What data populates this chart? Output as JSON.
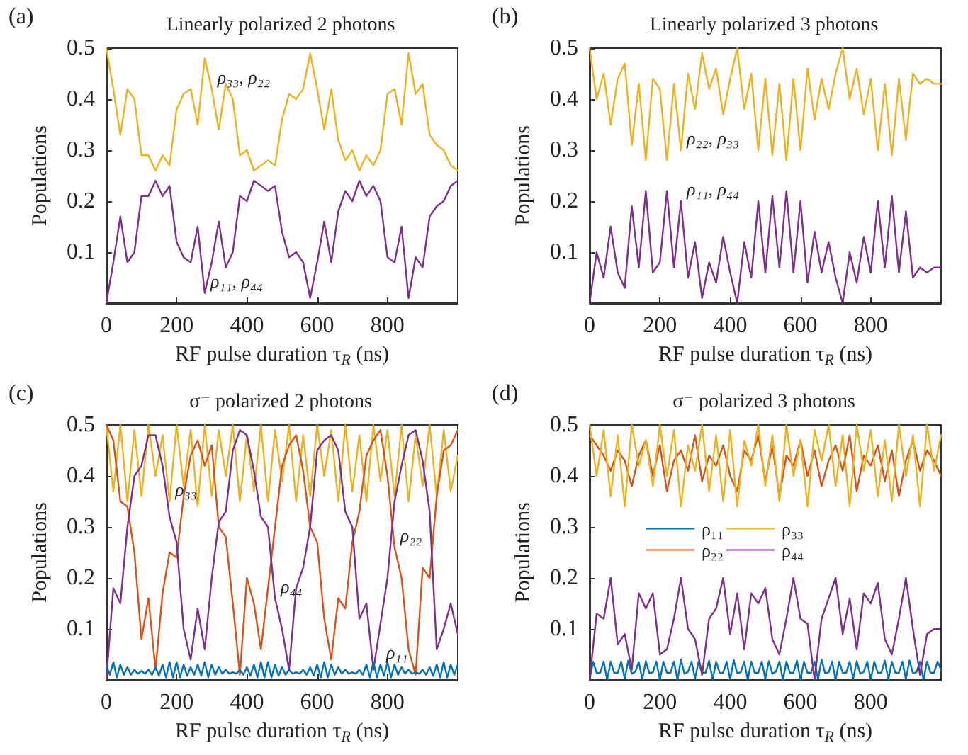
{
  "chart_data": [
    {
      "type": "line",
      "title": "Linearly polarized 2 photons",
      "xlabel": "RF pulse duration τ$_{R}$ (ns)",
      "ylabel": "Populations",
      "annotations": [
        "(a)",
        {
          "text": "ρ₃₃, ρ₂₂",
          "x": 300,
          "y": 0.42
        },
        {
          "text": "ρ₁₁, ρ₄₄",
          "x": 280,
          "y": 0.02
        }
      ],
      "xlim": [
        0,
        1000
      ],
      "ylim": [
        0,
        0.5
      ],
      "xticks": [
        0,
        200,
        400,
        600,
        800
      ],
      "yticks": [
        0.1,
        0.2,
        0.3,
        0.4,
        0.5
      ],
      "x": [
        0,
        20,
        40,
        60,
        80,
        100,
        120,
        140,
        160,
        180,
        200,
        220,
        240,
        260,
        280,
        300,
        320,
        340,
        360,
        380,
        400,
        420,
        440,
        460,
        480,
        500,
        520,
        540,
        560,
        580,
        600,
        620,
        640,
        660,
        680,
        700,
        720,
        740,
        760,
        780,
        800,
        820,
        840,
        860,
        880,
        900,
        920,
        940,
        960,
        980,
        1000
      ],
      "series": [
        {
          "color": "#edb120",
          "values": [
            0.5,
            0.42,
            0.33,
            0.42,
            0.4,
            0.29,
            0.29,
            0.26,
            0.29,
            0.27,
            0.38,
            0.41,
            0.42,
            0.35,
            0.48,
            0.42,
            0.34,
            0.43,
            0.4,
            0.29,
            0.3,
            0.26,
            0.27,
            0.28,
            0.27,
            0.36,
            0.41,
            0.4,
            0.42,
            0.49,
            0.42,
            0.34,
            0.42,
            0.32,
            0.28,
            0.3,
            0.26,
            0.29,
            0.27,
            0.3,
            0.41,
            0.42,
            0.35,
            0.49,
            0.41,
            0.43,
            0.33,
            0.31,
            0.3,
            0.27,
            0.26
          ]
        },
        {
          "color": "#7e2f8e",
          "values": [
            0.0,
            0.08,
            0.17,
            0.08,
            0.1,
            0.21,
            0.21,
            0.24,
            0.21,
            0.23,
            0.12,
            0.09,
            0.08,
            0.15,
            0.02,
            0.08,
            0.16,
            0.07,
            0.1,
            0.21,
            0.2,
            0.24,
            0.23,
            0.22,
            0.23,
            0.14,
            0.09,
            0.1,
            0.08,
            0.01,
            0.08,
            0.16,
            0.08,
            0.18,
            0.22,
            0.2,
            0.24,
            0.21,
            0.23,
            0.2,
            0.09,
            0.08,
            0.15,
            0.01,
            0.09,
            0.07,
            0.17,
            0.19,
            0.2,
            0.23,
            0.24
          ]
        }
      ]
    },
    {
      "type": "line",
      "title": "Linearly polarized 3 photons",
      "xlabel": "RF pulse duration τ$_{R}$ (ns)",
      "ylabel": "Populations",
      "annotations": [
        "(b)",
        {
          "text": "ρ₂₂, ρ₃₃",
          "x": 260,
          "y": 0.3
        },
        {
          "text": "ρ₁₁, ρ₄₄",
          "x": 260,
          "y": 0.2
        }
      ],
      "xlim": [
        0,
        1000
      ],
      "ylim": [
        0,
        0.5
      ],
      "xticks": [
        0,
        200,
        400,
        600,
        800
      ],
      "yticks": [
        0.1,
        0.2,
        0.3,
        0.4,
        0.5
      ],
      "x": [
        0,
        20,
        40,
        60,
        80,
        100,
        120,
        140,
        160,
        180,
        200,
        220,
        240,
        260,
        280,
        300,
        320,
        340,
        360,
        380,
        400,
        420,
        440,
        460,
        480,
        500,
        520,
        540,
        560,
        580,
        600,
        620,
        640,
        660,
        680,
        700,
        720,
        740,
        760,
        780,
        800,
        820,
        840,
        860,
        880,
        900,
        920,
        940,
        960,
        980,
        1000
      ],
      "series": [
        {
          "color": "#edb120",
          "values": [
            0.5,
            0.4,
            0.45,
            0.35,
            0.44,
            0.47,
            0.31,
            0.43,
            0.28,
            0.44,
            0.42,
            0.28,
            0.43,
            0.3,
            0.45,
            0.38,
            0.49,
            0.42,
            0.46,
            0.37,
            0.44,
            0.5,
            0.38,
            0.45,
            0.3,
            0.44,
            0.29,
            0.43,
            0.28,
            0.44,
            0.3,
            0.46,
            0.36,
            0.44,
            0.38,
            0.45,
            0.5,
            0.4,
            0.46,
            0.37,
            0.44,
            0.3,
            0.43,
            0.29,
            0.44,
            0.32,
            0.45,
            0.43,
            0.44,
            0.43,
            0.43
          ]
        },
        {
          "color": "#7e2f8e",
          "values": [
            0.0,
            0.1,
            0.05,
            0.15,
            0.06,
            0.03,
            0.19,
            0.07,
            0.22,
            0.06,
            0.08,
            0.22,
            0.07,
            0.2,
            0.05,
            0.12,
            0.01,
            0.08,
            0.04,
            0.13,
            0.06,
            0.0,
            0.12,
            0.05,
            0.2,
            0.06,
            0.21,
            0.07,
            0.22,
            0.06,
            0.2,
            0.04,
            0.14,
            0.06,
            0.12,
            0.05,
            0.0,
            0.1,
            0.04,
            0.13,
            0.06,
            0.2,
            0.07,
            0.21,
            0.06,
            0.18,
            0.05,
            0.07,
            0.06,
            0.07,
            0.07
          ]
        }
      ]
    },
    {
      "type": "line",
      "title": "σ⁻ polarized 2 photons",
      "xlabel": "RF pulse duration τ$_{R}$ (ns)",
      "ylabel": "Populations",
      "annotations": [
        "(c)",
        {
          "text": "ρ₃₃",
          "x": 180,
          "y": 0.35
        },
        {
          "text": "ρ₄₄",
          "x": 480,
          "y": 0.16
        },
        {
          "text": "ρ₂₂",
          "x": 820,
          "y": 0.26
        },
        {
          "text": "ρ₁₁",
          "x": 780,
          "y": 0.03
        }
      ],
      "xlim": [
        0,
        1000
      ],
      "ylim": [
        0,
        0.5
      ],
      "xticks": [
        0,
        200,
        400,
        600,
        800
      ],
      "yticks": [
        0.1,
        0.2,
        0.3,
        0.4,
        0.5
      ],
      "x": [
        0,
        20,
        40,
        60,
        80,
        100,
        120,
        140,
        160,
        180,
        200,
        220,
        240,
        260,
        280,
        300,
        320,
        340,
        360,
        380,
        400,
        420,
        440,
        460,
        480,
        500,
        520,
        540,
        560,
        580,
        600,
        620,
        640,
        660,
        680,
        700,
        720,
        740,
        760,
        780,
        800,
        820,
        840,
        860,
        880,
        900,
        920,
        940,
        960,
        980,
        1000
      ],
      "series": [
        {
          "color": "#edb120",
          "values": [
            0.5,
            0.37,
            0.5,
            0.35,
            0.49,
            0.36,
            0.5,
            0.4,
            0.48,
            0.35,
            0.5,
            0.38,
            0.49,
            0.34,
            0.5,
            0.36,
            0.49,
            0.4,
            0.5,
            0.35,
            0.48,
            0.37,
            0.5,
            0.35,
            0.49,
            0.39,
            0.5,
            0.35,
            0.48,
            0.36,
            0.5,
            0.4,
            0.49,
            0.35,
            0.5,
            0.37,
            0.48,
            0.35,
            0.5,
            0.39,
            0.49,
            0.36,
            0.5,
            0.35,
            0.48,
            0.38,
            0.5,
            0.36,
            0.49,
            0.37,
            0.44
          ]
        },
        {
          "color": "#d95319",
          "values": [
            0.5,
            0.47,
            0.35,
            0.34,
            0.25,
            0.08,
            0.16,
            0.02,
            0.17,
            0.25,
            0.24,
            0.36,
            0.44,
            0.47,
            0.42,
            0.46,
            0.3,
            0.28,
            0.15,
            0.01,
            0.2,
            0.15,
            0.06,
            0.18,
            0.3,
            0.42,
            0.46,
            0.48,
            0.41,
            0.3,
            0.27,
            0.12,
            0.04,
            0.16,
            0.14,
            0.27,
            0.33,
            0.44,
            0.47,
            0.49,
            0.4,
            0.26,
            0.2,
            0.06,
            0.01,
            0.22,
            0.2,
            0.36,
            0.45,
            0.46,
            0.49
          ]
        },
        {
          "color": "#7e2f8e",
          "values": [
            0.0,
            0.18,
            0.15,
            0.3,
            0.4,
            0.42,
            0.48,
            0.48,
            0.42,
            0.32,
            0.27,
            0.1,
            0.04,
            0.14,
            0.06,
            0.2,
            0.31,
            0.33,
            0.45,
            0.49,
            0.48,
            0.41,
            0.32,
            0.3,
            0.16,
            0.1,
            0.02,
            0.18,
            0.22,
            0.3,
            0.45,
            0.47,
            0.48,
            0.45,
            0.33,
            0.3,
            0.12,
            0.15,
            0.02,
            0.11,
            0.2,
            0.35,
            0.42,
            0.48,
            0.49,
            0.43,
            0.33,
            0.06,
            0.1,
            0.15,
            0.09
          ]
        },
        {
          "color": "#0072bd",
          "x": [
            0,
            10,
            20,
            30,
            40,
            50,
            60,
            70,
            80,
            90,
            100,
            110,
            120,
            130,
            140,
            150,
            160,
            170,
            180,
            190,
            200,
            210,
            220,
            230,
            240,
            250,
            260,
            270,
            280,
            290,
            300,
            310,
            320,
            330,
            340,
            350,
            360,
            370,
            380,
            390,
            400,
            410,
            420,
            430,
            440,
            450,
            460,
            470,
            480,
            490,
            500,
            510,
            520,
            530,
            540,
            550,
            560,
            570,
            580,
            590,
            600,
            610,
            620,
            630,
            640,
            650,
            660,
            670,
            680,
            690,
            700,
            710,
            720,
            730,
            740,
            750,
            760,
            770,
            780,
            790,
            800,
            810,
            820,
            830,
            840,
            850,
            860,
            870,
            880,
            890,
            900,
            910,
            920,
            930,
            940,
            950,
            960,
            970,
            980,
            990,
            1000
          ],
          "values": [
            0.03,
            0.01,
            0.035,
            0.005,
            0.03,
            0.01,
            0.025,
            0.01,
            0.02,
            0.012,
            0.018,
            0.012,
            0.02,
            0.01,
            0.025,
            0.008,
            0.03,
            0.005,
            0.035,
            0.005,
            0.035,
            0.005,
            0.03,
            0.008,
            0.025,
            0.01,
            0.03,
            0.008,
            0.035,
            0.005,
            0.03,
            0.01,
            0.025,
            0.012,
            0.02,
            0.012,
            0.015,
            0.012,
            0.02,
            0.01,
            0.025,
            0.008,
            0.03,
            0.005,
            0.035,
            0.005,
            0.035,
            0.005,
            0.03,
            0.008,
            0.025,
            0.01,
            0.02,
            0.012,
            0.015,
            0.012,
            0.02,
            0.01,
            0.025,
            0.008,
            0.03,
            0.005,
            0.035,
            0.005,
            0.03,
            0.01,
            0.025,
            0.012,
            0.02,
            0.012,
            0.015,
            0.012,
            0.02,
            0.01,
            0.03,
            0.005,
            0.035,
            0.005,
            0.03,
            0.008,
            0.035,
            0.005,
            0.03,
            0.01,
            0.025,
            0.012,
            0.02,
            0.012,
            0.015,
            0.012,
            0.02,
            0.01,
            0.025,
            0.008,
            0.03,
            0.005,
            0.035,
            0.005,
            0.03,
            0.01,
            0.03
          ]
        }
      ]
    },
    {
      "type": "line",
      "title": "σ⁻ polarized 3 photons",
      "xlabel": "RF pulse duration τ$_{R}$ (ns)",
      "ylabel": "Populations",
      "annotations": [
        "(d)"
      ],
      "legend": "center",
      "xlim": [
        0,
        1000
      ],
      "ylim": [
        0,
        0.5
      ],
      "xticks": [
        0,
        200,
        400,
        600,
        800
      ],
      "yticks": [
        0.1,
        0.2,
        0.3,
        0.4,
        0.5
      ],
      "x": [
        0,
        20,
        40,
        60,
        80,
        100,
        120,
        140,
        160,
        180,
        200,
        220,
        240,
        260,
        280,
        300,
        320,
        340,
        360,
        380,
        400,
        420,
        440,
        460,
        480,
        500,
        520,
        540,
        560,
        580,
        600,
        620,
        640,
        660,
        680,
        700,
        720,
        740,
        760,
        780,
        800,
        820,
        840,
        860,
        880,
        900,
        920,
        940,
        960,
        980,
        1000
      ],
      "series": [
        {
          "name": "ρ₁₁",
          "color": "#0072bd",
          "x": [
            0,
            10,
            20,
            30,
            40,
            50,
            60,
            70,
            80,
            90,
            100,
            110,
            120,
            130,
            140,
            150,
            160,
            170,
            180,
            190,
            200,
            210,
            220,
            230,
            240,
            250,
            260,
            270,
            280,
            290,
            300,
            310,
            320,
            330,
            340,
            350,
            360,
            370,
            380,
            390,
            400,
            410,
            420,
            430,
            440,
            450,
            460,
            470,
            480,
            490,
            500,
            510,
            520,
            530,
            540,
            550,
            560,
            570,
            580,
            590,
            600,
            610,
            620,
            630,
            640,
            650,
            660,
            670,
            680,
            690,
            700,
            710,
            720,
            730,
            740,
            750,
            760,
            770,
            780,
            790,
            800,
            810,
            820,
            830,
            840,
            850,
            860,
            870,
            880,
            890,
            900,
            910,
            920,
            930,
            940,
            950,
            960,
            970,
            980,
            990,
            1000
          ],
          "values": [
            0.0,
            0.036,
            0.014,
            0.014,
            0.036,
            0.0,
            0.036,
            0.014,
            0.014,
            0.036,
            0.002,
            0.038,
            0.012,
            0.016,
            0.035,
            0.001,
            0.037,
            0.013,
            0.015,
            0.036,
            0.0,
            0.036,
            0.014,
            0.014,
            0.036,
            0.0,
            0.04,
            0.012,
            0.016,
            0.036,
            0.002,
            0.036,
            0.014,
            0.014,
            0.038,
            0.0,
            0.036,
            0.014,
            0.014,
            0.036,
            0.001,
            0.039,
            0.013,
            0.015,
            0.036,
            0.0,
            0.036,
            0.014,
            0.014,
            0.036,
            0.002,
            0.037,
            0.012,
            0.016,
            0.036,
            0.0,
            0.036,
            0.014,
            0.014,
            0.038,
            0.0,
            0.036,
            0.014,
            0.014,
            0.036,
            0.001,
            0.04,
            0.013,
            0.015,
            0.036,
            0.0,
            0.036,
            0.014,
            0.014,
            0.036,
            0.002,
            0.037,
            0.012,
            0.016,
            0.036,
            0.0,
            0.036,
            0.014,
            0.014,
            0.038,
            0.0,
            0.036,
            0.014,
            0.014,
            0.036,
            0.001,
            0.038,
            0.013,
            0.015,
            0.036,
            0.0,
            0.036,
            0.014,
            0.014,
            0.036,
            0.02
          ]
        },
        {
          "name": "ρ₂₂",
          "color": "#d95319",
          "values": [
            0.48,
            0.46,
            0.44,
            0.41,
            0.45,
            0.43,
            0.38,
            0.44,
            0.47,
            0.4,
            0.46,
            0.37,
            0.43,
            0.45,
            0.41,
            0.48,
            0.39,
            0.44,
            0.42,
            0.46,
            0.4,
            0.37,
            0.45,
            0.43,
            0.48,
            0.39,
            0.46,
            0.36,
            0.44,
            0.42,
            0.47,
            0.4,
            0.45,
            0.38,
            0.43,
            0.46,
            0.41,
            0.48,
            0.37,
            0.44,
            0.42,
            0.46,
            0.39,
            0.45,
            0.36,
            0.43,
            0.47,
            0.41,
            0.45,
            0.43,
            0.4
          ]
        },
        {
          "name": "ρ₃₃",
          "color": "#edb120",
          "values": [
            0.5,
            0.4,
            0.49,
            0.36,
            0.48,
            0.34,
            0.5,
            0.42,
            0.47,
            0.38,
            0.5,
            0.4,
            0.49,
            0.34,
            0.46,
            0.41,
            0.5,
            0.37,
            0.48,
            0.35,
            0.49,
            0.34,
            0.47,
            0.42,
            0.5,
            0.38,
            0.48,
            0.35,
            0.5,
            0.4,
            0.47,
            0.34,
            0.49,
            0.43,
            0.5,
            0.38,
            0.48,
            0.34,
            0.5,
            0.41,
            0.49,
            0.36,
            0.47,
            0.35,
            0.5,
            0.4,
            0.48,
            0.34,
            0.5,
            0.41,
            0.48
          ]
        },
        {
          "name": "ρ₄₄",
          "color": "#7e2f8e",
          "values": [
            0.0,
            0.13,
            0.12,
            0.2,
            0.07,
            0.09,
            0.02,
            0.17,
            0.14,
            0.17,
            0.05,
            0.06,
            0.12,
            0.2,
            0.1,
            0.08,
            0.01,
            0.12,
            0.14,
            0.2,
            0.09,
            0.17,
            0.06,
            0.17,
            0.15,
            0.18,
            0.08,
            0.05,
            0.12,
            0.2,
            0.12,
            0.11,
            0.0,
            0.12,
            0.16,
            0.2,
            0.09,
            0.16,
            0.06,
            0.17,
            0.15,
            0.19,
            0.08,
            0.05,
            0.12,
            0.2,
            0.1,
            0.01,
            0.09,
            0.1,
            0.1
          ]
        }
      ]
    }
  ]
}
